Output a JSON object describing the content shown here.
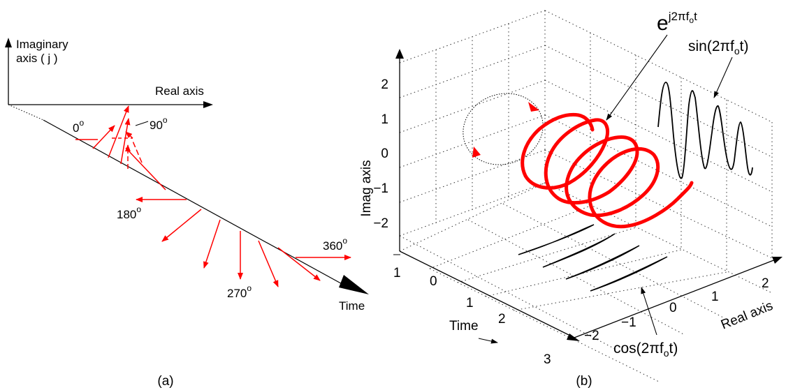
{
  "panel_a": {
    "caption": "(a)",
    "imag_axis_label_line1": "Imaginary",
    "imag_axis_label_line2": "axis ( j )",
    "real_axis_label": "Real axis",
    "time_label": "Time",
    "angle_labels": [
      {
        "value": "0",
        "sup": "o"
      },
      {
        "value": "90",
        "sup": "o"
      },
      {
        "value": "180",
        "sup": "o"
      },
      {
        "value": "270",
        "sup": "o"
      },
      {
        "value": "360",
        "sup": "o"
      }
    ]
  },
  "panel_b": {
    "caption": "(b)",
    "z_axis_label": "Imag axis",
    "x_axis_label": "Real axis",
    "time_label": "Time",
    "z_ticks": [
      "2",
      "1",
      "0",
      "−1",
      "−2"
    ],
    "time_ticks": [
      "1",
      "0",
      "1",
      "2",
      "3"
    ],
    "real_ticks": [
      "−2",
      "−1",
      "0",
      "1",
      "2"
    ],
    "exp_label_base": "e",
    "exp_label_exponent": "j2πf",
    "exp_label_sub": "o",
    "exp_label_tail": "t",
    "sin_label_head": "sin(2πf",
    "sin_label_sub": "o",
    "sin_label_tail": "t)",
    "cos_label_head": "cos(2πf",
    "cos_label_sub": "o",
    "cos_label_tail": "t)"
  },
  "colors": {
    "phasor": "#ff0000",
    "axis": "#000000"
  }
}
